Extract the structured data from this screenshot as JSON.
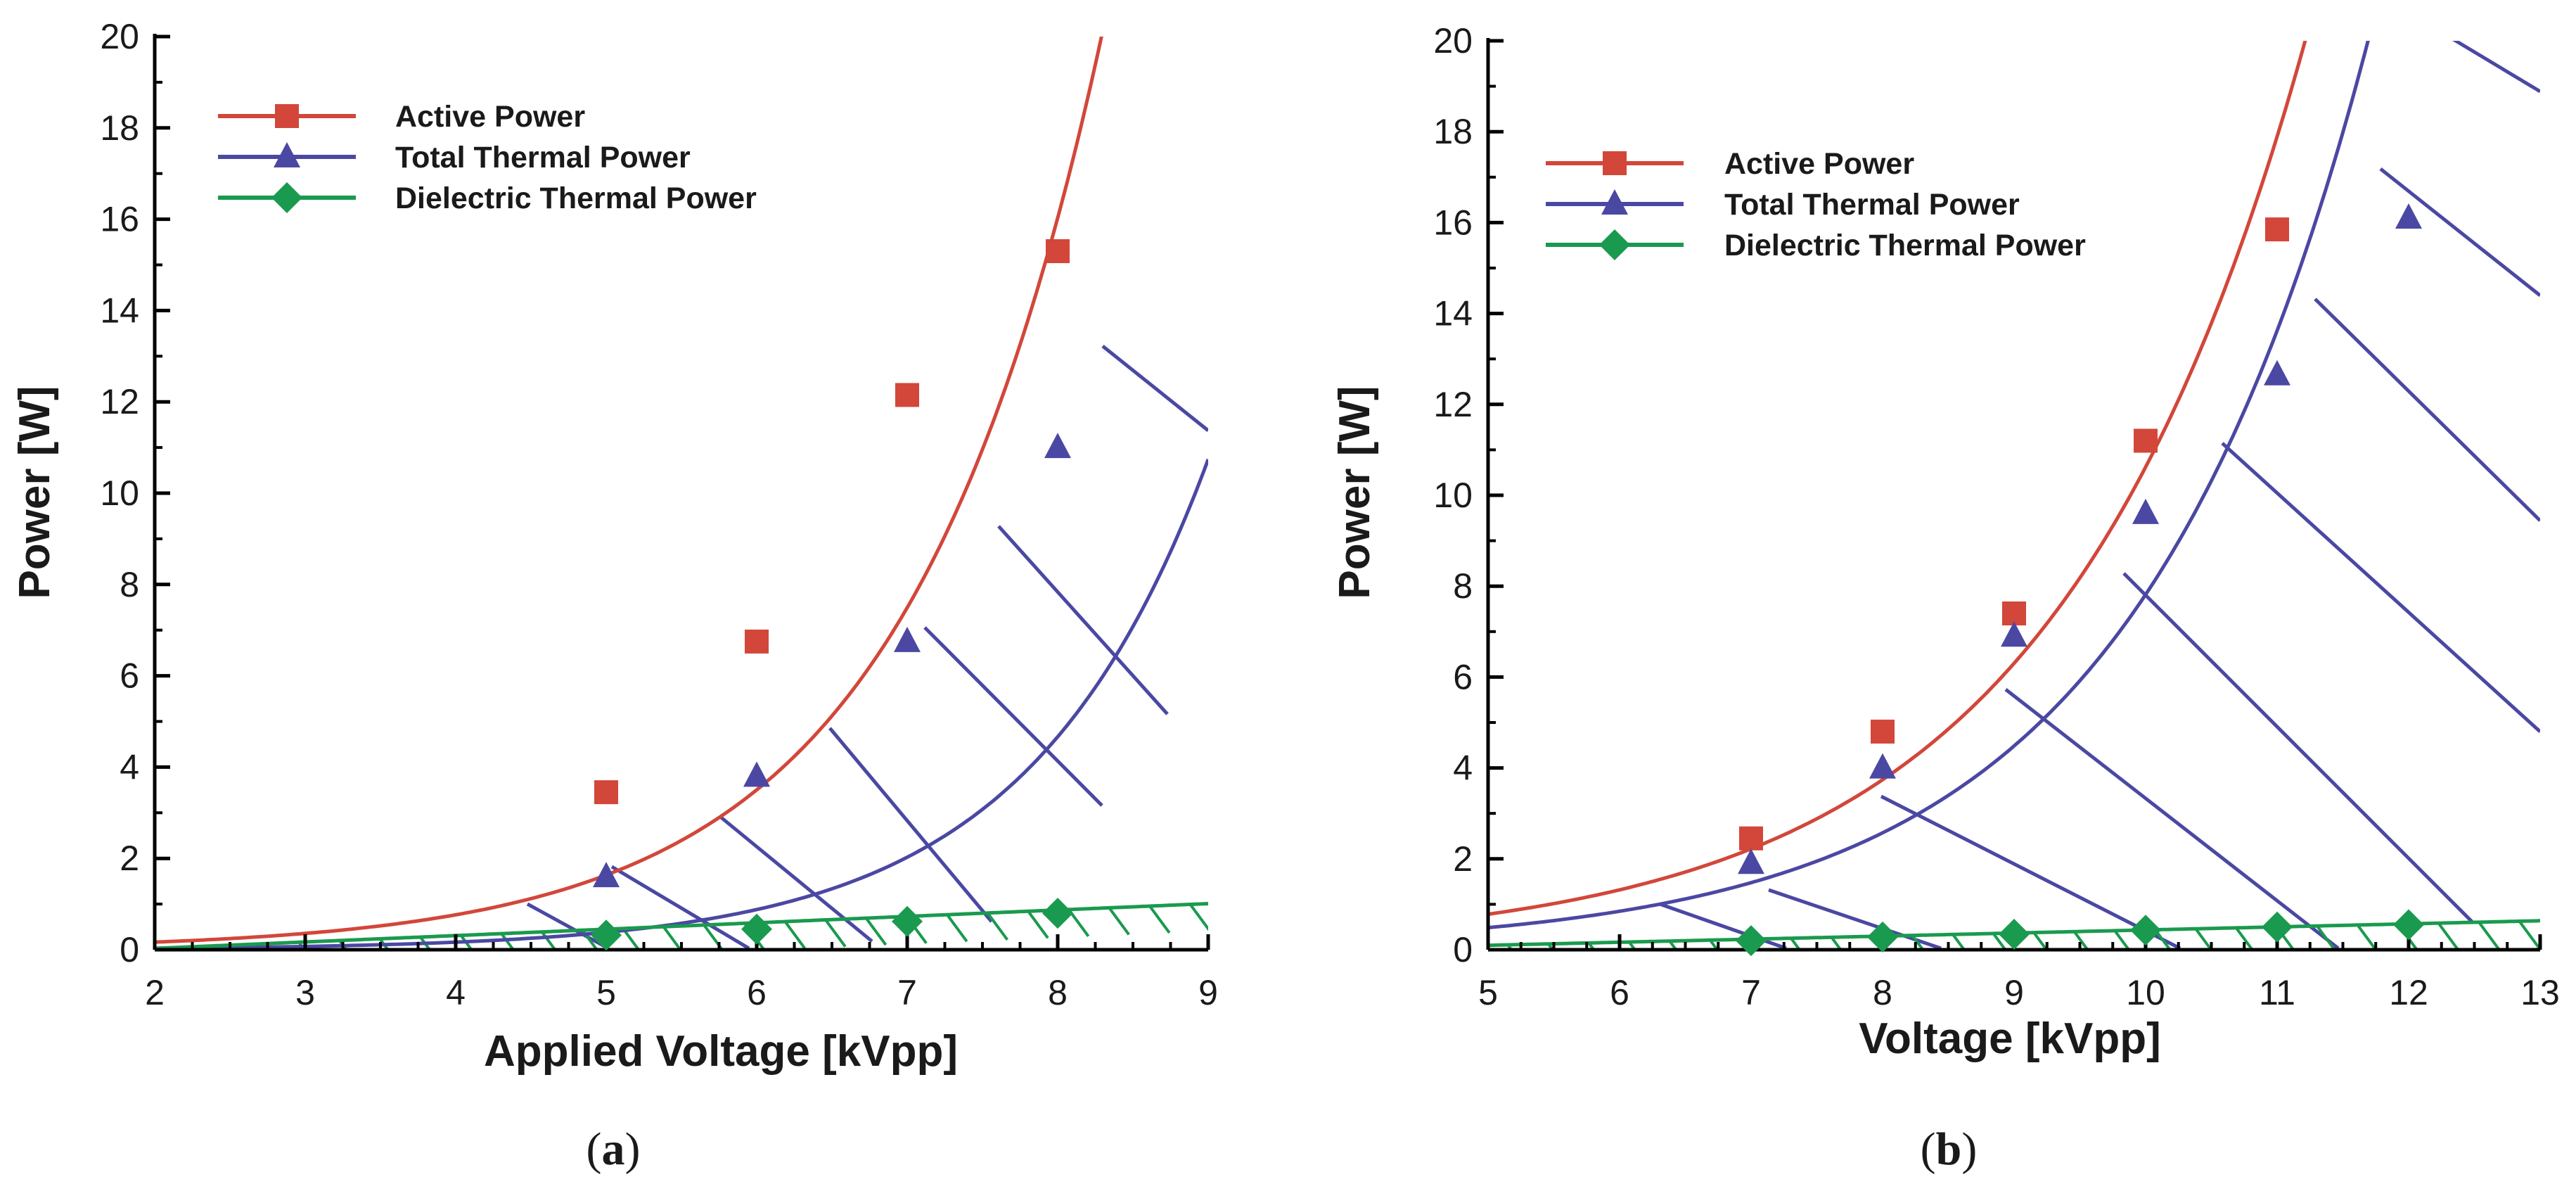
{
  "figure_captions": [
    "(a)",
    "(b)"
  ],
  "chart_data": [
    {
      "type": "line",
      "panel": "a",
      "caption_letter": "a",
      "xlabel": "Applied Voltage [kVpp]",
      "ylabel": "Power [W]",
      "xlim": [
        2,
        9
      ],
      "ylim": [
        0,
        20
      ],
      "xticks": [
        2,
        3,
        4,
        5,
        6,
        7,
        8,
        9
      ],
      "yticks": [
        0,
        2,
        4,
        6,
        8,
        10,
        12,
        14,
        16,
        18,
        20
      ],
      "legend_position": "top-left",
      "colors": {
        "active": "#d2473a",
        "thermal": "#4b48a3",
        "dielectric": "#1a9a4e"
      },
      "series": [
        {
          "name": "Active Power",
          "marker": "square",
          "color": "#d2473a",
          "points": [
            [
              5,
              3.45
            ],
            [
              6,
              6.75
            ],
            [
              7,
              12.15
            ],
            [
              8,
              15.3
            ]
          ],
          "fit": {
            "a": 0.0365,
            "b": 0.7606
          }
        },
        {
          "name": "Total Thermal Power",
          "marker": "triangle",
          "color": "#4b48a3",
          "points": [
            [
              5,
              1.6
            ],
            [
              6,
              3.8
            ],
            [
              7,
              6.75
            ],
            [
              8,
              11.0
            ]
          ],
          "fit": {
            "a": 0.0059,
            "b": 0.8341
          }
        },
        {
          "name": "Dielectric Thermal Power",
          "marker": "diamond",
          "color": "#1a9a4e",
          "points": [
            [
              5,
              0.32
            ],
            [
              6,
              0.45
            ],
            [
              7,
              0.62
            ],
            [
              8,
              0.8
            ]
          ],
          "fit": {
            "m": 0.14,
            "c": -0.25
          }
        }
      ]
    },
    {
      "type": "line",
      "panel": "b",
      "caption_letter": "b",
      "xlabel": "Voltage [kVpp]",
      "ylabel": "Power [W]",
      "xlim": [
        5,
        13
      ],
      "ylim": [
        0,
        20
      ],
      "xticks": [
        5,
        6,
        7,
        8,
        9,
        10,
        11,
        12,
        13
      ],
      "yticks": [
        0,
        2,
        4,
        6,
        8,
        10,
        12,
        14,
        16,
        18,
        20
      ],
      "legend_position": "top-left",
      "colors": {
        "active": "#d2473a",
        "thermal": "#4b48a3",
        "dielectric": "#1a9a4e"
      },
      "series": [
        {
          "name": "Active Power",
          "marker": "square",
          "color": "#d2473a",
          "points": [
            [
              7,
              2.45
            ],
            [
              8,
              4.8
            ],
            [
              9,
              7.4
            ],
            [
              10,
              11.2
            ],
            [
              11,
              15.85
            ]
          ],
          "fit": {
            "a": 0.0576,
            "b": 0.5217
          }
        },
        {
          "name": "Total Thermal Power",
          "marker": "triangle",
          "color": "#4b48a3",
          "points": [
            [
              7,
              1.9
            ],
            [
              8,
              4.0
            ],
            [
              9,
              6.9
            ],
            [
              10,
              9.6
            ],
            [
              11,
              12.65
            ],
            [
              12,
              16.1
            ]
          ],
          "fit": {
            "a": 0.0302,
            "b": 0.5556
          }
        },
        {
          "name": "Dielectric Thermal Power",
          "marker": "diamond",
          "color": "#1a9a4e",
          "points": [
            [
              7,
              0.2
            ],
            [
              8,
              0.28
            ],
            [
              9,
              0.34
            ],
            [
              10,
              0.43
            ],
            [
              11,
              0.5
            ],
            [
              12,
              0.55
            ]
          ],
          "fit": {
            "m": 0.0675,
            "c": -0.24
          }
        }
      ]
    }
  ]
}
